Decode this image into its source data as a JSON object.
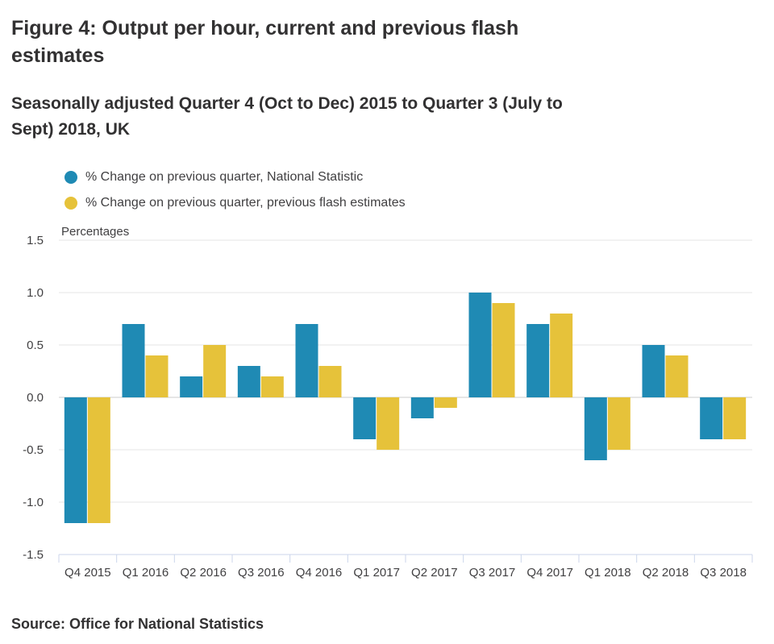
{
  "title": "Figure 4: Output per hour, current and previous flash estimates",
  "subtitle": "Seasonally adjusted Quarter 4 (Oct to Dec) 2015 to Quarter 3 (July to Sept) 2018, UK",
  "source": "Source: Office for National Statistics",
  "chart_data": {
    "type": "bar",
    "ylabel": "Percentages",
    "ylim": [
      -1.5,
      1.5
    ],
    "yticks": [
      "1.5",
      "1.0",
      "0.5",
      "0.0",
      "-0.5",
      "-1.0",
      "-1.5"
    ],
    "ytick_values": [
      1.5,
      1.0,
      0.5,
      0.0,
      -0.5,
      -1.0,
      -1.5
    ],
    "categories": [
      "Q4 2015",
      "Q1 2016",
      "Q2 2016",
      "Q3 2016",
      "Q4 2016",
      "Q1 2017",
      "Q2 2017",
      "Q3 2017",
      "Q4 2017",
      "Q1 2018",
      "Q2 2018",
      "Q3 2018"
    ],
    "grid": true,
    "legend_position": "top-left",
    "series": [
      {
        "name": "% Change on previous quarter, National Statistic",
        "color": "#1f8ab4",
        "values": [
          -1.2,
          0.7,
          0.2,
          0.3,
          0.7,
          -0.4,
          -0.2,
          1.0,
          0.7,
          -0.6,
          0.5,
          -0.4
        ]
      },
      {
        "name": "% Change on previous quarter, previous flash estimates",
        "color": "#e6c23a",
        "values": [
          -1.2,
          0.4,
          0.5,
          0.2,
          0.3,
          -0.5,
          -0.1,
          0.9,
          0.8,
          -0.5,
          0.4,
          -0.4
        ]
      }
    ]
  }
}
